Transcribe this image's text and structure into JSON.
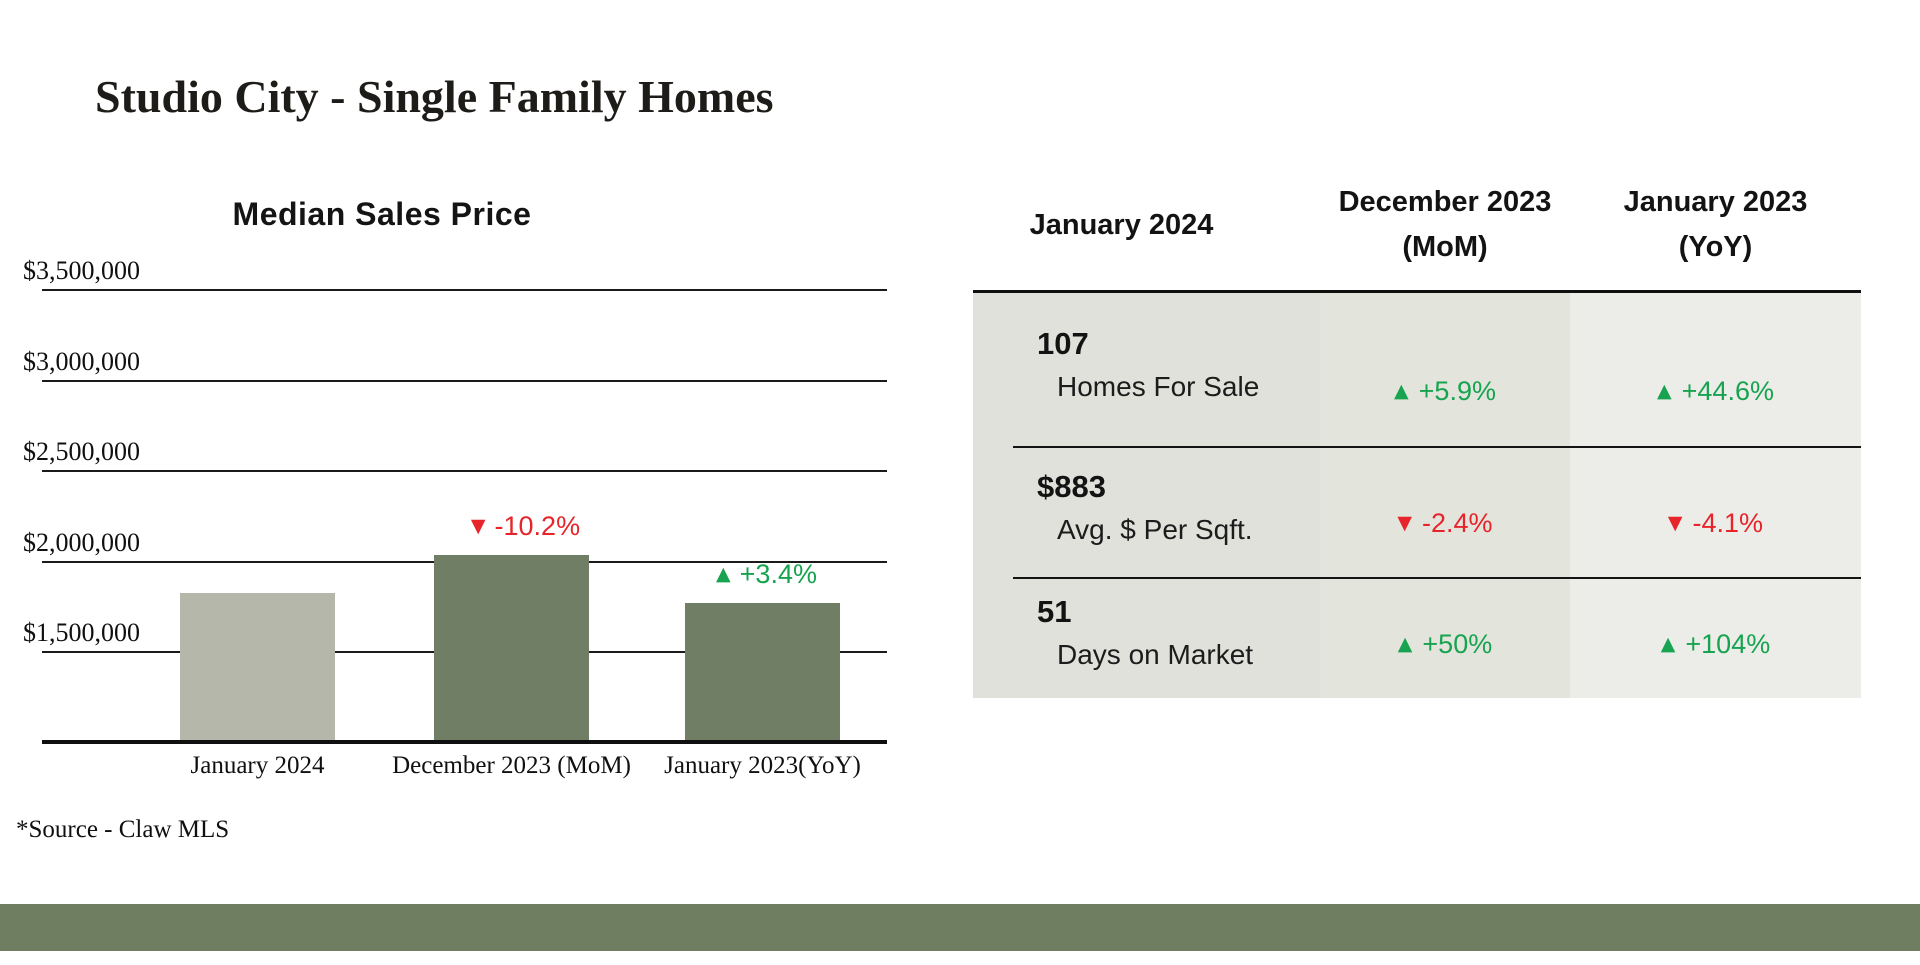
{
  "page": {
    "title": "Studio City - Single Family Homes",
    "source_note": "*Source - Claw MLS"
  },
  "colors": {
    "up_green": "#17a34f",
    "down_red": "#e7242a",
    "bar_current": "#b4b7aa",
    "bar_compare": "#6f7e64",
    "footer_bar": "#6f7d61",
    "column_backgrounds": [
      "#dfe1da",
      "#e3e5dd",
      "#ecede8"
    ]
  },
  "chart_data": {
    "type": "bar",
    "title": "Median Sales Price",
    "categories": [
      "January 2024",
      "December 2023 (MoM)",
      "January 2023(YoY)"
    ],
    "values": [
      1830000,
      2038000,
      1770000
    ],
    "xlabel": "",
    "ylabel": "",
    "ylim": [
      1000000,
      3500000
    ],
    "gridline_interval": 500000,
    "grid": true,
    "legend": false,
    "y_ticks": [
      {
        "label": "$3,500,000",
        "value": 3500000
      },
      {
        "label": "$3,000,000",
        "value": 3000000
      },
      {
        "label": "$2,500,000",
        "value": 2500000
      },
      {
        "label": "$2,000,000",
        "value": 2000000
      },
      {
        "label": "$1,500,000",
        "value": 1500000
      }
    ],
    "annotations": [
      {
        "bar_index": 1,
        "direction": "down",
        "text": "-10.2%"
      },
      {
        "bar_index": 2,
        "direction": "up",
        "text": "+3.4%"
      }
    ]
  },
  "table": {
    "headers": [
      {
        "line1": "January 2024",
        "line2": ""
      },
      {
        "line1": "December 2023",
        "line2": "(MoM)"
      },
      {
        "line1": "January 2023",
        "line2": "(YoY)"
      }
    ],
    "rows": [
      {
        "value": "107",
        "label": "Homes For Sale",
        "mom": {
          "direction": "up",
          "text": "+5.9%"
        },
        "yoy": {
          "direction": "up",
          "text": "+44.6%"
        }
      },
      {
        "value": "$883",
        "label": "Avg. $ Per Sqft.",
        "mom": {
          "direction": "down",
          "text": "-2.4%"
        },
        "yoy": {
          "direction": "down",
          "text": "-4.1%"
        }
      },
      {
        "value": "51",
        "label": "Days on Market",
        "mom": {
          "direction": "up",
          "text": "+50%"
        },
        "yoy": {
          "direction": "up",
          "text": "+104%"
        }
      }
    ]
  }
}
